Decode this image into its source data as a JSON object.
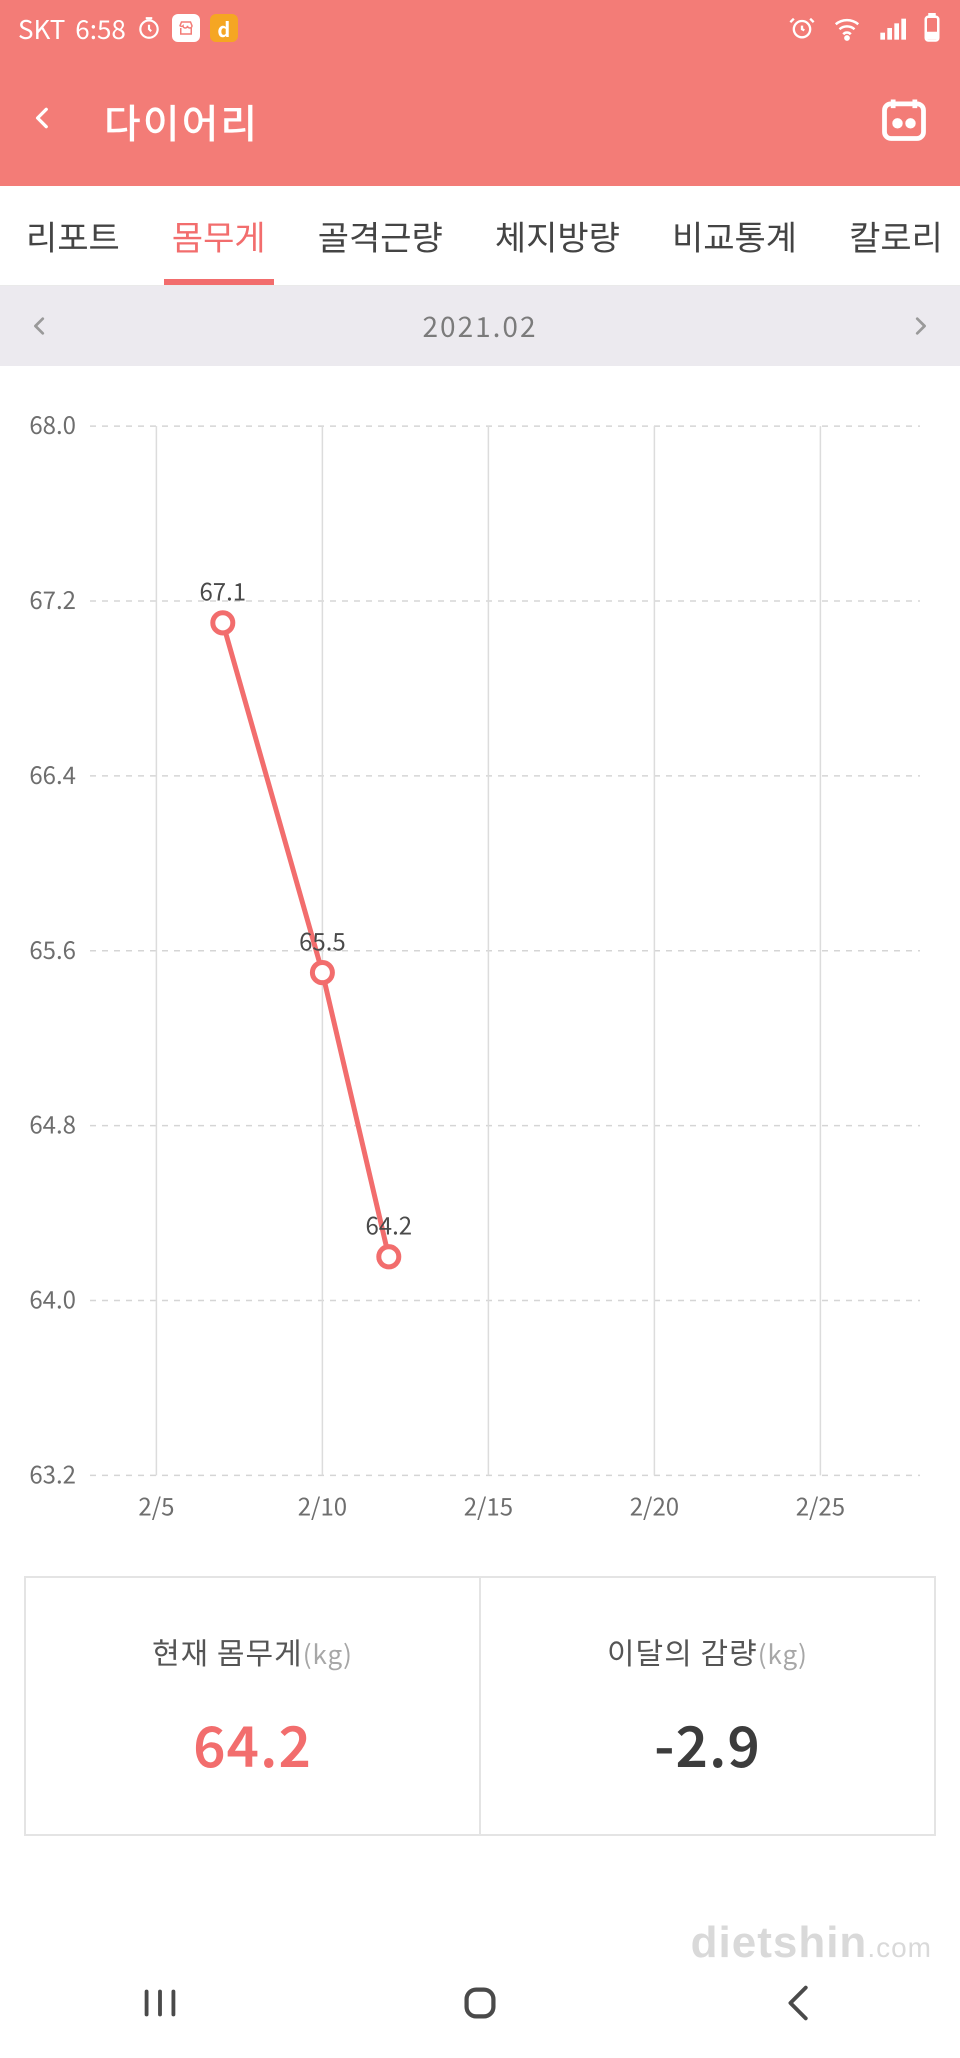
{
  "status": {
    "carrier": "SKT",
    "time": "6:58",
    "icons_left": [
      "timer-icon",
      "store-icon",
      "music-icon"
    ],
    "icons_right": [
      "alarm-icon",
      "wifi-icon",
      "signal-icon",
      "battery-icon"
    ]
  },
  "header": {
    "title": "다이어리"
  },
  "tabs": {
    "items": [
      "리포트",
      "몸무게",
      "골격근량",
      "체지방량",
      "비교통계",
      "칼로리"
    ],
    "active_index": 1
  },
  "month": {
    "label": "2021.02"
  },
  "chart": {
    "type": "line",
    "y_ticks": [
      68.0,
      67.2,
      66.4,
      65.6,
      64.8,
      64.0,
      63.2
    ],
    "y_tick_labels": [
      "68.0",
      "67.2",
      "66.4",
      "65.6",
      "64.8",
      "64.0",
      "63.2"
    ],
    "ylim": [
      63.2,
      68.0
    ],
    "x_ticks": [
      5,
      10,
      15,
      20,
      25
    ],
    "x_tick_labels": [
      "2/5",
      "2/10",
      "2/15",
      "2/20",
      "2/25"
    ],
    "xlim": [
      3,
      28
    ],
    "series": {
      "color": "#f26d6d",
      "marker_fill": "#ffffff",
      "marker_stroke": "#f26d6d",
      "line_width": 5,
      "marker_radius": 10,
      "points": [
        {
          "x": 7,
          "y": 67.1,
          "label": "67.1"
        },
        {
          "x": 10,
          "y": 65.5,
          "label": "65.5"
        },
        {
          "x": 12,
          "y": 64.2,
          "label": "64.2"
        }
      ]
    },
    "grid": {
      "h_color": "#d5d5d5",
      "h_dash": "6 6",
      "v_color": "#dcdcdc",
      "bg": "#ffffff"
    },
    "label_fontsize": 24
  },
  "summary": {
    "current": {
      "title": "현재 몸무게",
      "unit": "(kg)",
      "value": "64.2"
    },
    "delta": {
      "title": "이달의 감량",
      "unit": "(kg)",
      "value": "-2.9"
    }
  },
  "watermark": {
    "main": "dietshin",
    "suffix": ".com"
  },
  "colors": {
    "header_bg": "#f37c77",
    "accent": "#f26d6d",
    "month_bg": "#eceaef",
    "text": "#444444",
    "muted": "#7b7b7b",
    "border": "#e4e4e4"
  }
}
